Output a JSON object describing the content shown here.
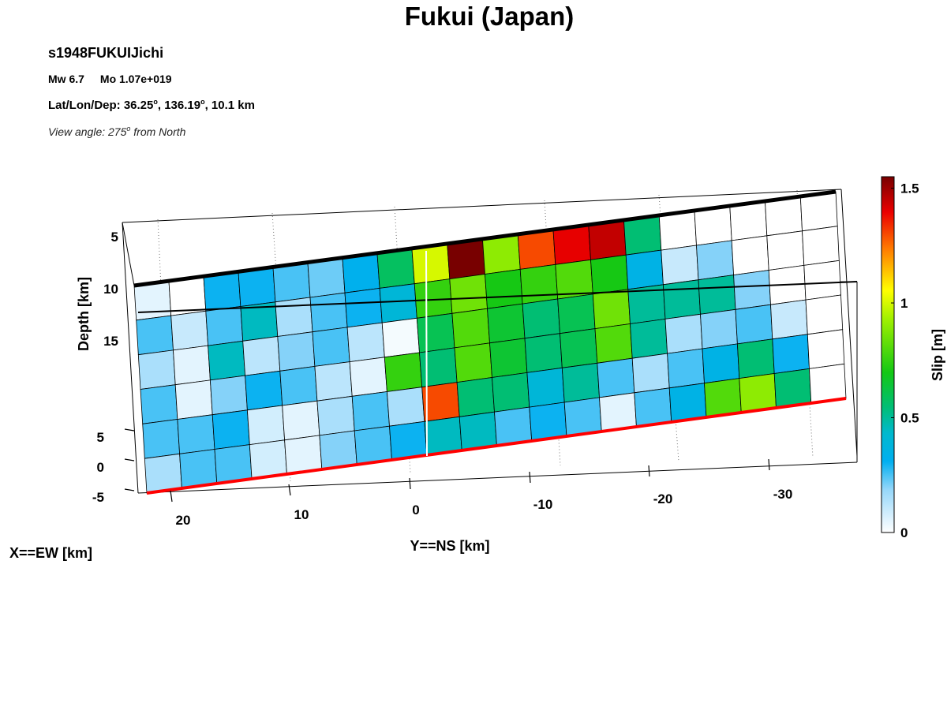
{
  "header": {
    "title": "Fukui (Japan)",
    "event_id": "s1948FUKUIJichi",
    "magnitude": "Mw 6.7",
    "moment": "Mo 1.07e+019",
    "location_prefix": "Lat/Lon/Dep: 36.25",
    "location_mid": ", 136.19",
    "location_suffix": ", 10.1 km",
    "degree_mark": "o",
    "view_prefix": "View angle: 275",
    "view_suffix": " from North"
  },
  "chart_data": {
    "type": "heatmap",
    "title": "Fukui (Japan)",
    "xlabel": "X==EW [km]",
    "ylabel": "Y==NS [km]",
    "zlabel": "Depth [km]",
    "y_ticks": [
      "20",
      "10",
      "0",
      "-10",
      "-20",
      "-30"
    ],
    "x_ticks": [
      "5",
      "0",
      "-5"
    ],
    "depth_ticks": [
      "5",
      "10",
      "15"
    ],
    "colorbar": {
      "label": "Slip [m]",
      "range": [
        0,
        1.55
      ],
      "ticks": [
        "1.5",
        "1",
        "0.5",
        "0"
      ]
    },
    "segments": [
      {
        "name": "",
        "rows": 6,
        "cols": 8,
        "slip": [
          [
            0.05,
            0.0,
            0.3,
            0.3,
            0.25,
            0.22,
            0.32,
            0.58
          ],
          [
            0.25,
            0.1,
            0.25,
            0.45,
            0.15,
            0.25,
            0.3,
            0.4
          ],
          [
            0.15,
            0.05,
            0.45,
            0.12,
            0.2,
            0.25,
            0.12,
            0.02
          ],
          [
            0.25,
            0.05,
            0.2,
            0.3,
            0.25,
            0.12,
            0.05,
            0.75
          ],
          [
            0.25,
            0.25,
            0.3,
            0.08,
            0.05,
            0.15,
            0.25,
            0.15
          ],
          [
            0.15,
            0.25,
            0.25,
            0.08,
            0.05,
            0.2,
            0.25,
            0.3
          ]
        ]
      },
      {
        "name": "",
        "rows": 6,
        "cols": 12,
        "slip": [
          [
            1.0,
            1.55,
            0.9,
            1.3,
            1.4,
            1.45,
            0.55,
            0.0,
            0.0,
            0.0,
            0.0,
            0.0
          ],
          [
            0.75,
            0.85,
            0.7,
            0.75,
            0.8,
            0.7,
            0.35,
            0.1,
            0.2,
            0.0,
            0.0,
            0.0
          ],
          [
            0.6,
            0.8,
            0.65,
            0.55,
            0.6,
            0.85,
            0.5,
            0.5,
            0.5,
            0.2,
            0.0,
            0.0
          ],
          [
            0.55,
            0.8,
            0.65,
            0.55,
            0.6,
            0.8,
            0.5,
            0.15,
            0.2,
            0.25,
            0.1,
            0.0
          ],
          [
            1.3,
            0.55,
            0.55,
            0.4,
            0.5,
            0.25,
            0.15,
            0.25,
            0.35,
            0.55,
            0.3,
            0.0
          ],
          [
            0.45,
            0.45,
            0.25,
            0.3,
            0.25,
            0.05,
            0.25,
            0.35,
            0.8,
            0.9,
            0.55,
            0.0
          ]
        ]
      }
    ]
  }
}
